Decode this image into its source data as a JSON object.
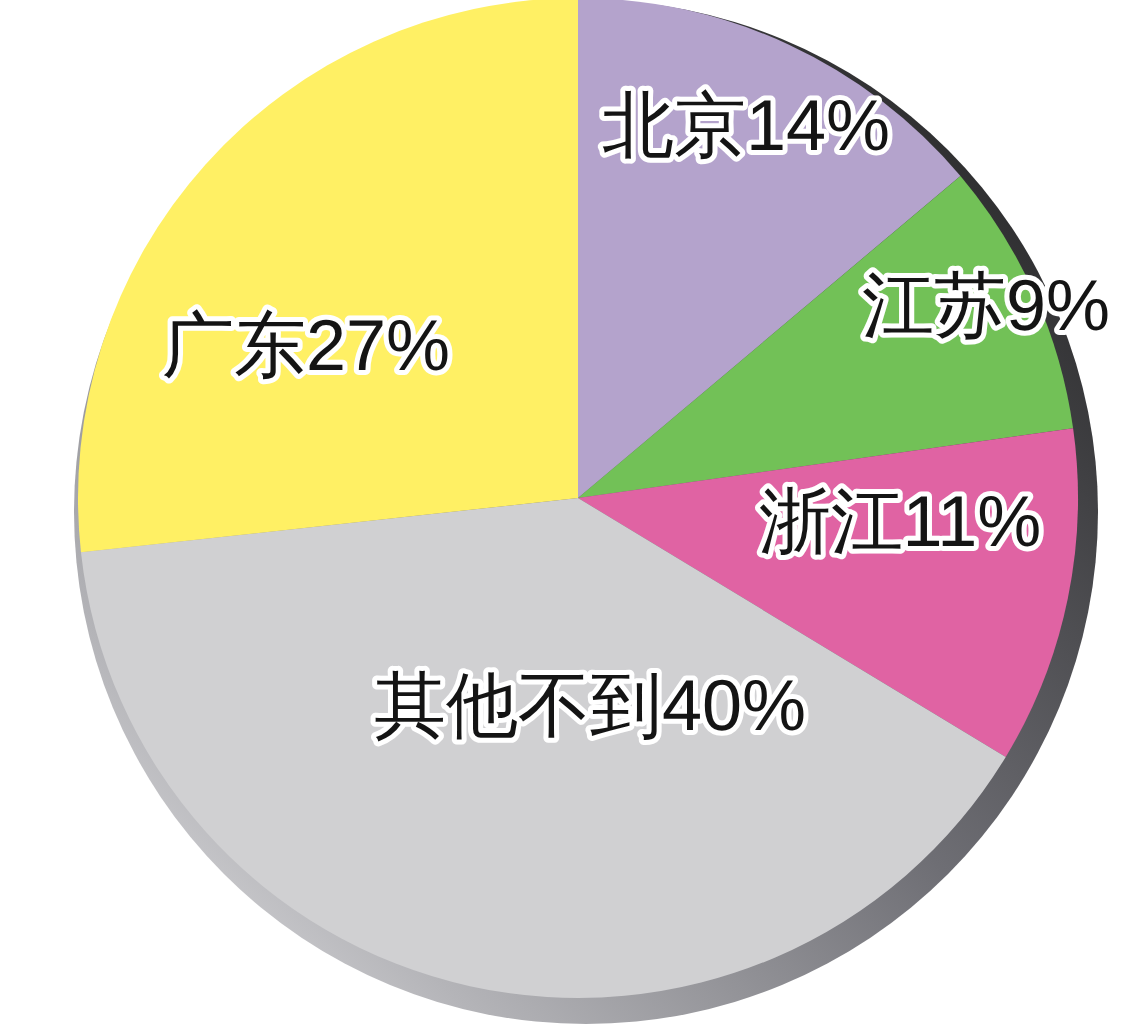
{
  "chart_data": {
    "type": "pie",
    "categories": [
      "北京",
      "江苏",
      "浙江",
      "其他",
      "广东"
    ],
    "values": [
      14,
      9,
      11,
      40,
      27
    ],
    "value_labels": [
      "14%",
      "9%",
      "11%",
      "不到40%",
      "27%"
    ],
    "colors": [
      "#b4a3cc",
      "#72c157",
      "#e063a3",
      "#d0d0d2",
      "#fff064"
    ]
  }
}
